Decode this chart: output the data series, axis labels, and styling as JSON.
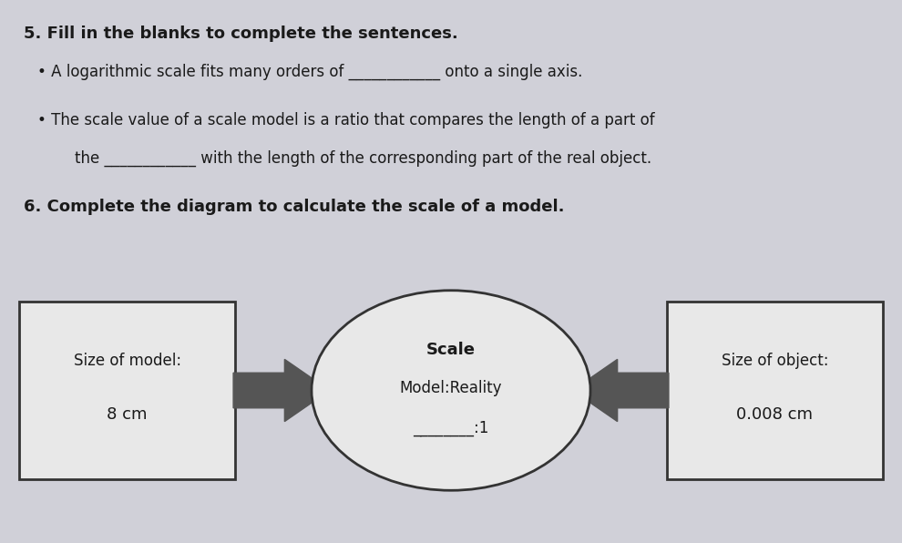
{
  "bg_color": "#d0d0d8",
  "title5": "5. Fill in the blanks to complete the sentences.",
  "bullet1": "A logarithmic scale fits many orders of ____________ onto a single axis.",
  "bullet2_line1": "The scale value of a scale model is a ratio that compares the length of a part of",
  "bullet2_line2": "the ____________ with the length of the corresponding part of the real object.",
  "title6": "6. Complete the diagram to calculate the scale of a model.",
  "left_box_line1": "Size of model:",
  "left_box_line2": "8 cm",
  "circle_line1": "Scale",
  "circle_line2": "Model:Reality",
  "circle_line3": "________:1",
  "right_box_line1": "Size of object:",
  "right_box_line2": "0.008 cm",
  "text_color": "#1a1a1a",
  "box_face": "#e8e8e8",
  "box_edge": "#333333",
  "arrow_color": "#555555",
  "circle_edge": "#333333",
  "circle_face": "#e8e8e8"
}
